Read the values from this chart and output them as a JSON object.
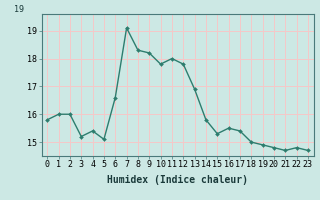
{
  "x": [
    0,
    1,
    2,
    3,
    4,
    5,
    6,
    7,
    8,
    9,
    10,
    11,
    12,
    13,
    14,
    15,
    16,
    17,
    18,
    19,
    20,
    21,
    22,
    23
  ],
  "y": [
    15.8,
    16.0,
    16.0,
    15.2,
    15.4,
    15.1,
    16.6,
    19.1,
    18.3,
    18.2,
    17.8,
    18.0,
    17.8,
    16.9,
    15.8,
    15.3,
    15.5,
    15.4,
    15.0,
    14.9,
    14.8,
    14.7,
    14.8,
    14.7
  ],
  "line_color": "#2d7d6e",
  "marker": "D",
  "marker_size": 2.0,
  "background_color": "#cce8e4",
  "grid_color": "#f5c8c8",
  "axis_bg_color": "#cce8e4",
  "xlabel": "Humidex (Indice chaleur)",
  "ylim": [
    14.5,
    19.6
  ],
  "yticks": [
    15,
    16,
    17,
    18,
    19
  ],
  "xticks": [
    0,
    1,
    2,
    3,
    4,
    5,
    6,
    7,
    8,
    9,
    10,
    11,
    12,
    13,
    14,
    15,
    16,
    17,
    18,
    19,
    20,
    21,
    22,
    23
  ],
  "xtick_labels": [
    "0",
    "1",
    "2",
    "3",
    "4",
    "5",
    "6",
    "7",
    "8",
    "9",
    "10",
    "11",
    "12",
    "13",
    "14",
    "15",
    "16",
    "17",
    "18",
    "19",
    "20",
    "21",
    "22",
    "23"
  ],
  "xlabel_fontsize": 7,
  "tick_fontsize": 6,
  "line_width": 1.0
}
